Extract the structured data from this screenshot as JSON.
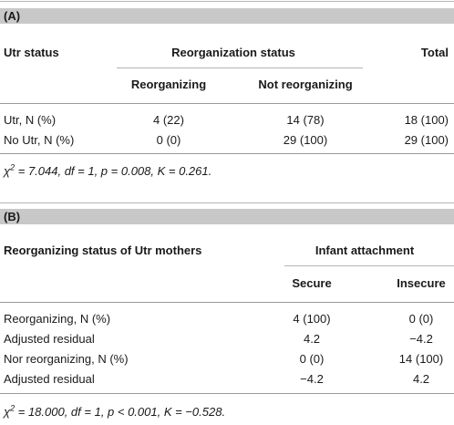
{
  "section_a": {
    "label": "(A)",
    "headers": {
      "utr_status": "Utr status",
      "reorg_status": "Reorganization status",
      "total": "Total",
      "reorganizing": "Reorganizing",
      "not_reorganizing": "Not reorganizing"
    },
    "rows": [
      {
        "label": "Utr, N (%)",
        "reorganizing": "4 (22)",
        "not_reorganizing": "14 (78)",
        "total": "18 (100)"
      },
      {
        "label": "No Utr, N (%)",
        "reorganizing": "0 (0)",
        "not_reorganizing": "29 (100)",
        "total": "29 (100)"
      }
    ],
    "note_chi": "χ",
    "note_exp": "2",
    "note_rest": " = 7.044, df = 1, p = 0.008, K = 0.261."
  },
  "section_b": {
    "label": "(B)",
    "headers": {
      "reorg_status_utr": "Reorganizing status of Utr mothers",
      "infant_attachment": "Infant attachment",
      "secure": "Secure",
      "insecure": "Insecure"
    },
    "rows": [
      {
        "label": "Reorganizing, N (%)",
        "secure": "4 (100)",
        "insecure": "0 (0)"
      },
      {
        "label": "Adjusted residual",
        "secure": "4.2",
        "insecure": "−4.2"
      },
      {
        "label": "Nor reorganizing, N (%)",
        "secure": "0 (0)",
        "insecure": "14 (100)"
      },
      {
        "label": "Adjusted residual",
        "secure": "−4.2",
        "insecure": "4.2"
      }
    ],
    "note_chi": "χ",
    "note_exp": "2",
    "note_rest": " = 18.000, df = 1, p < 0.001, K = −0.528."
  }
}
